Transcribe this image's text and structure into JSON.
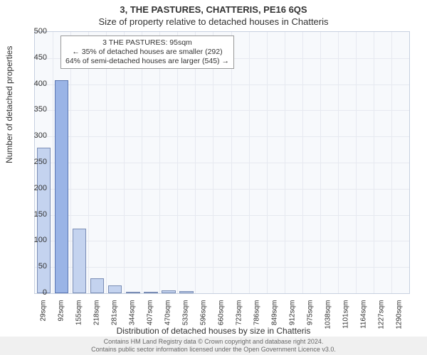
{
  "title_line1": "3, THE PASTURES, CHATTERIS, PE16 6QS",
  "title_line2": "Size of property relative to detached houses in Chatteris",
  "y_axis_label": "Number of detached properties",
  "x_axis_label": "Distribution of detached houses by size in Chatteris",
  "footer_line1": "Contains HM Land Registry data © Crown copyright and database right 2024.",
  "footer_line2": "Contains public sector information licensed under the Open Government Licence v3.0.",
  "annotation": {
    "line1": "3 THE PASTURES: 95sqm",
    "line2": "← 35% of detached houses are smaller (292)",
    "line3": "64% of semi-detached houses are larger (545) →"
  },
  "chart": {
    "type": "bar",
    "background_color": "#f7f9fc",
    "grid_color": "#e6e9f0",
    "border_color": "#c7d0e0",
    "bar_color": "#c4d3ef",
    "bar_border_color": "#7a8db5",
    "highlight_color": "#9ab4e6",
    "highlight_border_color": "#5a75b0",
    "highlight_index": 1,
    "ylim": [
      0,
      500
    ],
    "ytick_step": 50,
    "x_tick_labels": [
      "29sqm",
      "92sqm",
      "155sqm",
      "218sqm",
      "281sqm",
      "344sqm",
      "407sqm",
      "470sqm",
      "533sqm",
      "596sqm",
      "660sqm",
      "723sqm",
      "786sqm",
      "849sqm",
      "912sqm",
      "975sqm",
      "1038sqm",
      "1101sqm",
      "1164sqm",
      "1227sqm",
      "1290sqm"
    ],
    "values": [
      278,
      407,
      123,
      28,
      15,
      2,
      3,
      6,
      4,
      0,
      0,
      0,
      0,
      0,
      0,
      0,
      0,
      0,
      0,
      0,
      0
    ],
    "bar_width_ratio": 0.78,
    "label_fontsize": 12,
    "tick_fontsize": 11
  }
}
